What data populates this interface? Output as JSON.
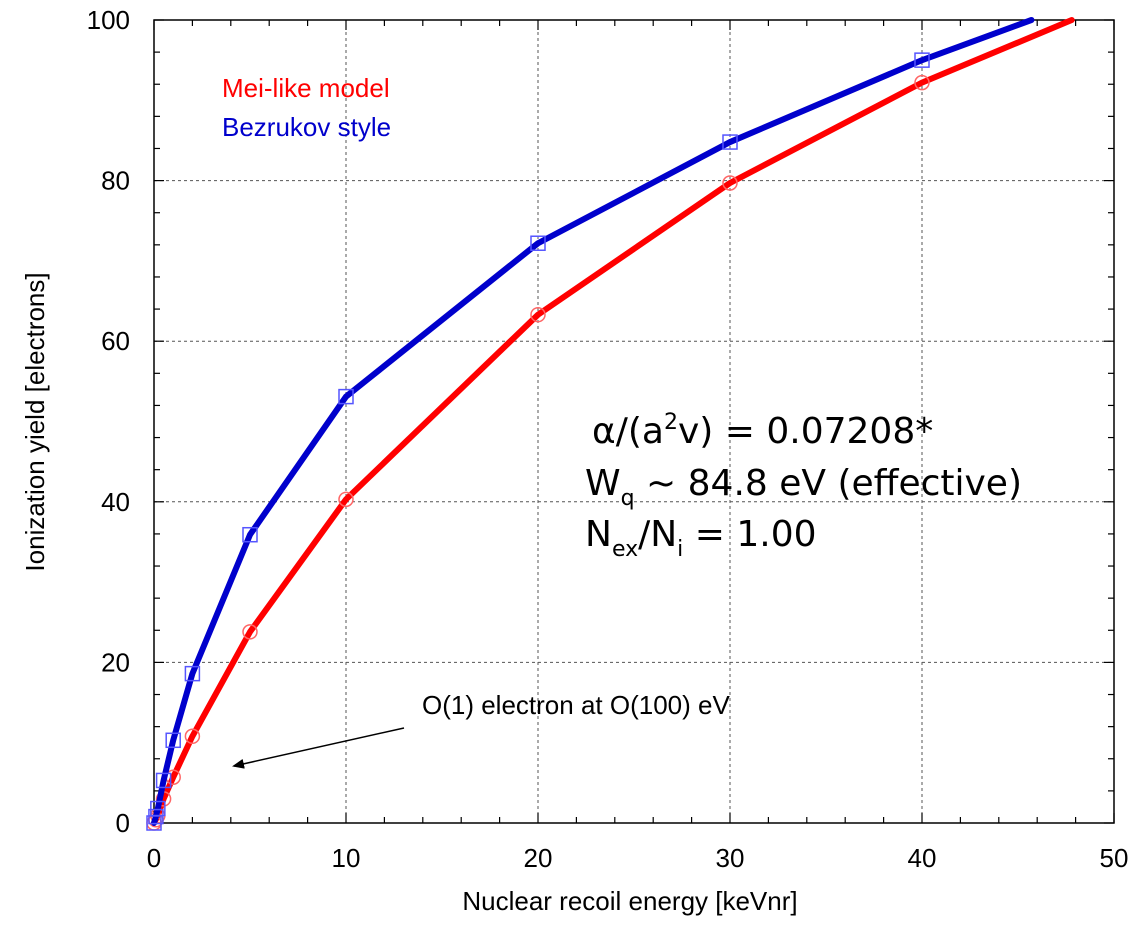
{
  "chart_data": {
    "type": "line",
    "xlabel": "Nuclear recoil energy [keVnr]",
    "ylabel": "Ionization yield [electrons]",
    "xlim": [
      0,
      50
    ],
    "ylim": [
      0,
      100
    ],
    "xticks": [
      "0",
      "10",
      "20",
      "30",
      "40",
      "50"
    ],
    "yticks": [
      "0",
      "20",
      "40",
      "60",
      "80",
      "100"
    ],
    "grid": true,
    "legend_position": "top-left",
    "series": [
      {
        "name": "Mei-like model",
        "color": "#ff0000",
        "marker": "circle",
        "line": [
          [
            0,
            0
          ],
          [
            0.2,
            0.9
          ],
          [
            0.5,
            3
          ],
          [
            1,
            5.7
          ],
          [
            2,
            10.8
          ],
          [
            5,
            23.8
          ],
          [
            10,
            40.3
          ],
          [
            20,
            63.3
          ],
          [
            30,
            79.7
          ],
          [
            40,
            92.2
          ],
          [
            47.8,
            100
          ]
        ],
        "markers": [
          [
            0,
            0
          ],
          [
            0.1,
            0.4
          ],
          [
            0.2,
            0.9
          ],
          [
            0.5,
            3
          ],
          [
            1,
            5.7
          ],
          [
            2,
            10.8
          ],
          [
            5,
            23.8
          ],
          [
            10,
            40.3
          ],
          [
            20,
            63.3
          ],
          [
            30,
            79.7
          ],
          [
            40,
            92.2
          ]
        ]
      },
      {
        "name": "Bezrukov style",
        "color": "#0000cc",
        "marker": "square",
        "line": [
          [
            0,
            0
          ],
          [
            0.1,
            0.8
          ],
          [
            0.2,
            1.8
          ],
          [
            0.5,
            5.3
          ],
          [
            1,
            10.3
          ],
          [
            2,
            18.6
          ],
          [
            5,
            35.9
          ],
          [
            10,
            53.1
          ],
          [
            20,
            72.2
          ],
          [
            30,
            84.8
          ],
          [
            40,
            95
          ],
          [
            45.7,
            100
          ]
        ],
        "markers": [
          [
            0,
            0
          ],
          [
            0.1,
            0.8
          ],
          [
            0.2,
            1.8
          ],
          [
            0.5,
            5.3
          ],
          [
            1,
            10.3
          ],
          [
            2,
            18.6
          ],
          [
            5,
            35.9
          ],
          [
            10,
            53.1
          ],
          [
            20,
            72.2
          ],
          [
            30,
            84.8
          ],
          [
            40,
            95
          ]
        ]
      }
    ],
    "annotations": {
      "line1_main": "α/(a",
      "line1_sup": "2",
      "line1_rest": "v) = 0.07208*",
      "line2_main": "W",
      "line2_sub": "q",
      "line2_rest": " ~ 84.8 eV (effective)",
      "line3_main": "N",
      "line3_sub1": "ex",
      "line3_mid": "/N",
      "line3_sub2": "i",
      "line3_rest": " = 1.00",
      "arrow_text": "O(1) electron at O(100) eV"
    }
  }
}
